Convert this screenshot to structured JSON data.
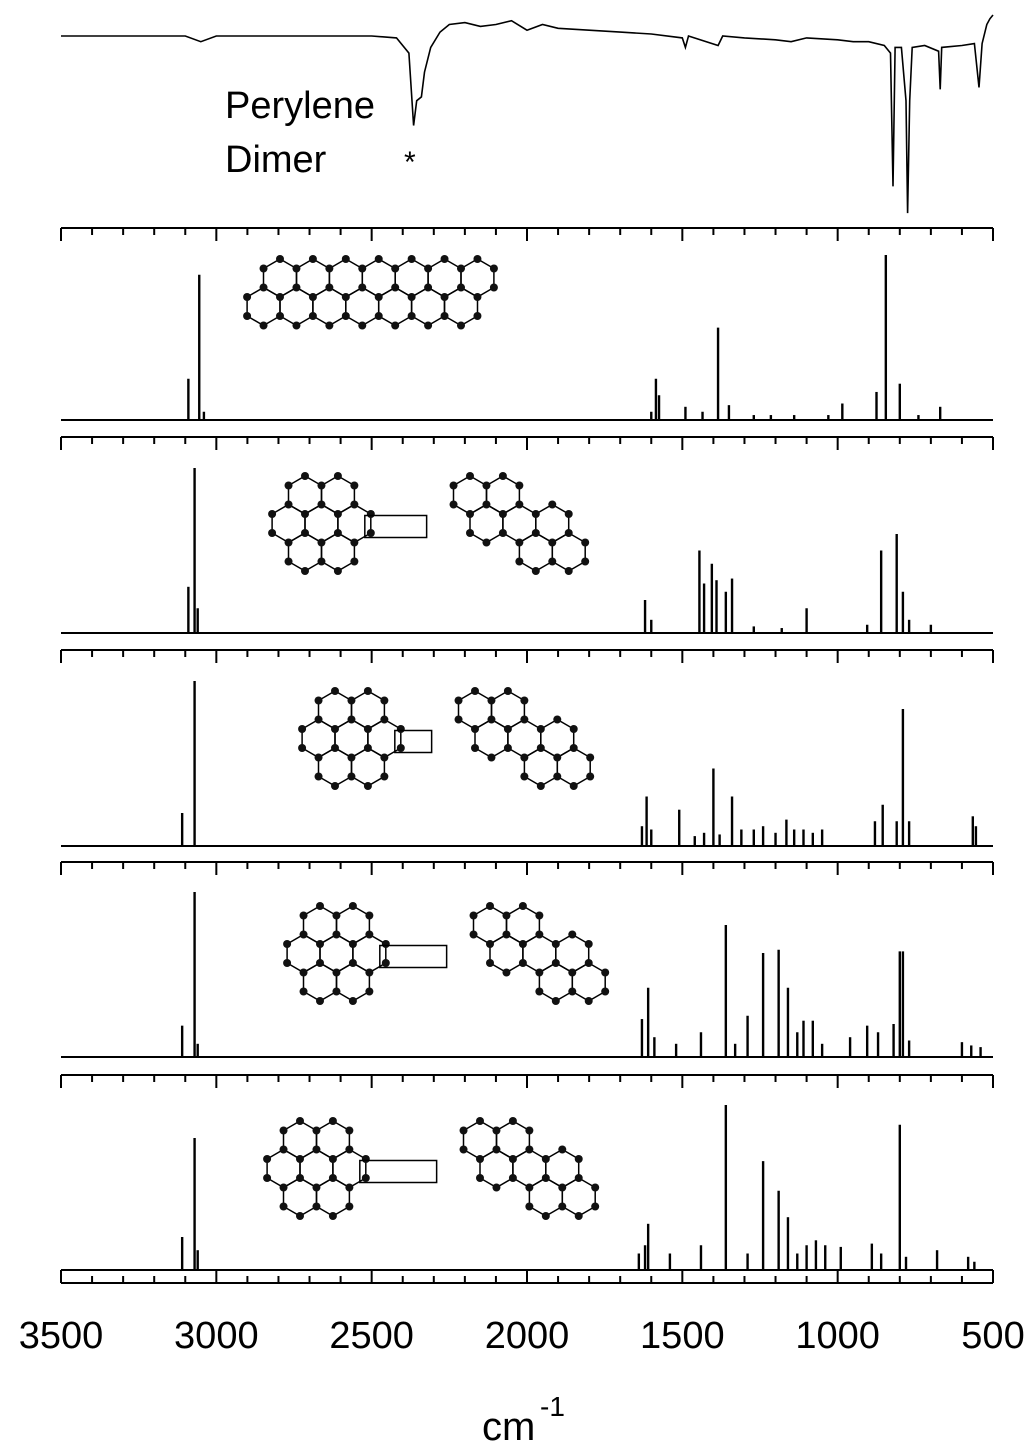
{
  "chart_data": [
    {
      "type": "line",
      "annotations": [
        "Perylene",
        "Dimer",
        "*"
      ],
      "xlim": [
        3500,
        500
      ],
      "ylim": [
        0,
        105
      ],
      "x": [
        3500,
        3300,
        3100,
        3050,
        3000,
        2500,
        2420,
        2380,
        2365,
        2355,
        2340,
        2330,
        2310,
        2280,
        2250,
        2200,
        2150,
        2100,
        2050,
        2000,
        1950,
        1900,
        1800,
        1700,
        1600,
        1500,
        1490,
        1480,
        1385,
        1370,
        1300,
        1200,
        1150,
        1100,
        1000,
        950,
        900,
        850,
        830,
        822,
        815,
        795,
        780,
        775,
        768,
        760,
        720,
        675,
        670,
        665,
        600,
        560,
        545,
        535,
        520,
        510,
        500
      ],
      "values": [
        94,
        94,
        94,
        91,
        94,
        94,
        93,
        85,
        47,
        60,
        62,
        75,
        88,
        96,
        100,
        101,
        99,
        100,
        102,
        97,
        100,
        98,
        97,
        96,
        95,
        93,
        88,
        94,
        89,
        94,
        93,
        92,
        91,
        93,
        92,
        91,
        91,
        89,
        85,
        15,
        88,
        88,
        60,
        1,
        60,
        88,
        89,
        86,
        66,
        88,
        89,
        90,
        67,
        90,
        100,
        103,
        105
      ]
    },
    {
      "type": "stick",
      "xlim": [
        3500,
        500
      ],
      "ylim": [
        0,
        100
      ],
      "x": [
        3090,
        3055,
        3040,
        1600,
        1585,
        1575,
        1490,
        1435,
        1385,
        1350,
        1270,
        1215,
        1140,
        1030,
        985,
        875,
        845,
        800,
        740,
        670
      ],
      "values": [
        25,
        88,
        5,
        5,
        25,
        15,
        8,
        5,
        56,
        9,
        3,
        3,
        3,
        3,
        10,
        17,
        100,
        22,
        3,
        8
      ]
    },
    {
      "type": "stick",
      "xlim": [
        3500,
        500
      ],
      "ylim": [
        0,
        100
      ],
      "x": [
        3090,
        3070,
        3060,
        1620,
        1600,
        1445,
        1430,
        1405,
        1390,
        1360,
        1340,
        1270,
        1180,
        1100,
        905,
        860,
        810,
        790,
        770,
        700
      ],
      "values": [
        28,
        100,
        15,
        20,
        8,
        50,
        30,
        42,
        32,
        25,
        33,
        4,
        3,
        15,
        5,
        50,
        60,
        25,
        8,
        5
      ]
    },
    {
      "type": "stick",
      "xlim": [
        3500,
        500
      ],
      "ylim": [
        0,
        100
      ],
      "x": [
        3110,
        3070,
        1630,
        1615,
        1600,
        1510,
        1460,
        1430,
        1400,
        1380,
        1340,
        1310,
        1270,
        1240,
        1200,
        1165,
        1140,
        1110,
        1080,
        1050,
        880,
        855,
        810,
        790,
        770,
        565,
        555
      ],
      "values": [
        20,
        100,
        12,
        30,
        10,
        22,
        6,
        8,
        47,
        7,
        30,
        10,
        10,
        12,
        8,
        16,
        10,
        10,
        8,
        10,
        15,
        25,
        15,
        83,
        15,
        18,
        12
      ]
    },
    {
      "type": "stick",
      "xlim": [
        3500,
        500
      ],
      "ylim": [
        0,
        100
      ],
      "x": [
        3110,
        3070,
        3060,
        1630,
        1610,
        1590,
        1520,
        1440,
        1360,
        1330,
        1290,
        1240,
        1190,
        1160,
        1130,
        1110,
        1080,
        1050,
        960,
        905,
        870,
        820,
        800,
        790,
        770,
        600,
        570,
        540
      ],
      "values": [
        19,
        100,
        8,
        23,
        42,
        12,
        8,
        15,
        80,
        8,
        25,
        63,
        65,
        42,
        15,
        22,
        22,
        8,
        12,
        19,
        15,
        20,
        64,
        64,
        10,
        9,
        7,
        6
      ]
    },
    {
      "type": "stick",
      "xlim": [
        3500,
        500
      ],
      "ylim": [
        0,
        100
      ],
      "x": [
        3110,
        3070,
        3060,
        1640,
        1620,
        1610,
        1540,
        1440,
        1360,
        1290,
        1240,
        1190,
        1160,
        1130,
        1100,
        1070,
        1040,
        990,
        890,
        860,
        800,
        780,
        680,
        580,
        560
      ],
      "values": [
        20,
        80,
        12,
        10,
        15,
        28,
        10,
        15,
        100,
        10,
        66,
        48,
        32,
        10,
        15,
        18,
        15,
        14,
        16,
        10,
        88,
        8,
        12,
        8,
        5
      ],
      "xticks": [
        3500,
        3000,
        2500,
        2000,
        1500,
        1000,
        500
      ],
      "xminorticks": [
        3400,
        3300,
        3200,
        3100,
        2900,
        2800,
        2700,
        2600,
        2400,
        2300,
        2200,
        2100,
        1900,
        1800,
        1700,
        1600,
        1400,
        1300,
        1200,
        1100,
        900,
        800,
        700,
        600
      ],
      "xlabel": {
        "text": "cm",
        "superscript": "-1"
      }
    }
  ]
}
